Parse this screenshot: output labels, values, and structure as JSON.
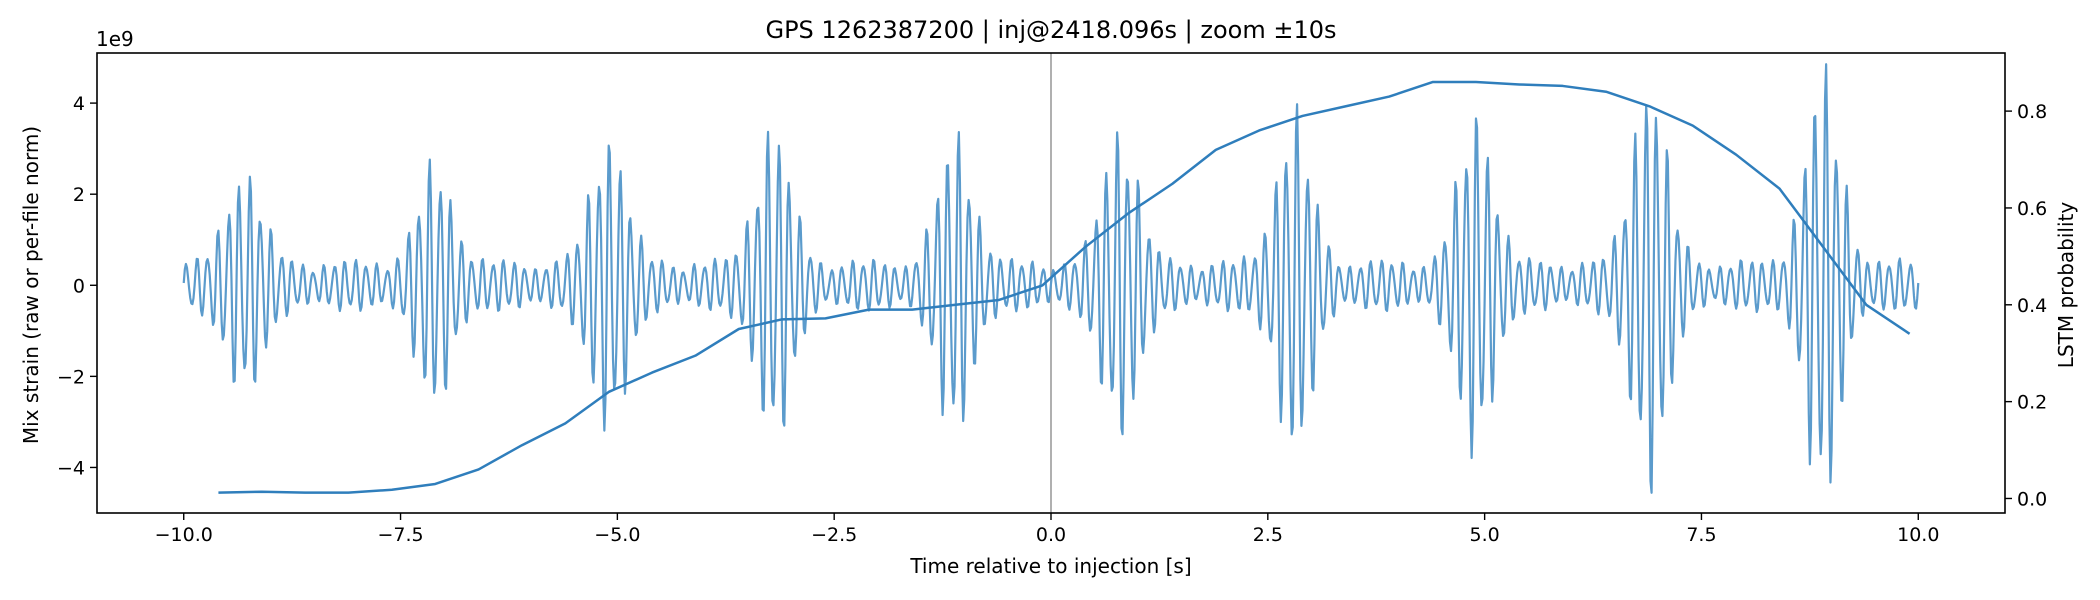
{
  "chart_data": {
    "type": "line",
    "title": "GPS 1262387200 | inj@2418.096s | zoom ±10s",
    "xlabel": "Time relative to injection [s]",
    "ylabel": "Mix strain (raw or per-file norm)",
    "ylabel_right": "LSTM probability",
    "offset_text": "1e9",
    "xlim": [
      -11.0,
      11.0
    ],
    "ylim": [
      -5.0,
      5.1
    ],
    "ylim_right": [
      -0.03,
      0.92
    ],
    "xticks": [
      -10.0,
      -7.5,
      -5.0,
      -2.5,
      0.0,
      2.5,
      5.0,
      7.5,
      10.0
    ],
    "xtick_labels": [
      "−10.0",
      "−7.5",
      "−5.0",
      "−2.5",
      "0.0",
      "2.5",
      "5.0",
      "7.5",
      "10.0"
    ],
    "yticks": [
      -4,
      -2,
      0,
      2,
      4
    ],
    "ytick_labels": [
      "−4",
      "−2",
      "0",
      "2",
      "4"
    ],
    "yticks_right": [
      0.0,
      0.2,
      0.4,
      0.6,
      0.8
    ],
    "ytick_labels_right": [
      "0.0",
      "0.2",
      "0.4",
      "0.6",
      "0.8"
    ],
    "vline_x": 0.0,
    "grid": false,
    "series": [
      {
        "axis": "left",
        "color": "#5b9bcc",
        "style": "burst oscillation (approximate envelope)",
        "x_range": [
          -10.0,
          10.0
        ],
        "bursts": [
          {
            "center": -9.3,
            "amplitude": 2.2
          },
          {
            "center": -7.1,
            "amplitude": 2.3
          },
          {
            "center": -5.1,
            "amplitude": 3.0
          },
          {
            "center": -3.2,
            "amplitude": 3.2
          },
          {
            "center": -1.1,
            "amplitude": 3.0
          },
          {
            "center": 0.8,
            "amplitude": 3.2
          },
          {
            "center": 2.8,
            "amplitude": 3.5
          },
          {
            "center": 4.9,
            "amplitude": 3.5
          },
          {
            "center": 6.9,
            "amplitude": 4.3
          },
          {
            "center": 8.9,
            "amplitude": 4.5
          }
        ],
        "baseline_amplitude": 0.6
      },
      {
        "axis": "right",
        "color": "#2f7ebc",
        "x": [
          -9.6,
          -9.1,
          -8.6,
          -8.1,
          -7.6,
          -7.1,
          -6.6,
          -6.1,
          -5.6,
          -5.1,
          -4.6,
          -4.1,
          -3.6,
          -3.1,
          -2.6,
          -2.1,
          -1.6,
          -1.1,
          -0.6,
          -0.1,
          0.4,
          0.9,
          1.4,
          1.9,
          2.4,
          2.9,
          3.4,
          3.9,
          4.4,
          4.9,
          5.4,
          5.9,
          6.4,
          6.9,
          7.4,
          7.9,
          8.4,
          8.9,
          9.4,
          9.9
        ],
        "values": [
          0.012,
          0.014,
          0.012,
          0.012,
          0.018,
          0.03,
          0.06,
          0.11,
          0.155,
          0.22,
          0.26,
          0.295,
          0.35,
          0.37,
          0.372,
          0.39,
          0.39,
          0.4,
          0.41,
          0.44,
          0.52,
          0.59,
          0.65,
          0.72,
          0.76,
          0.79,
          0.81,
          0.83,
          0.86,
          0.86,
          0.855,
          0.852,
          0.84,
          0.81,
          0.77,
          0.71,
          0.64,
          0.52,
          0.4,
          0.34
        ]
      }
    ]
  }
}
